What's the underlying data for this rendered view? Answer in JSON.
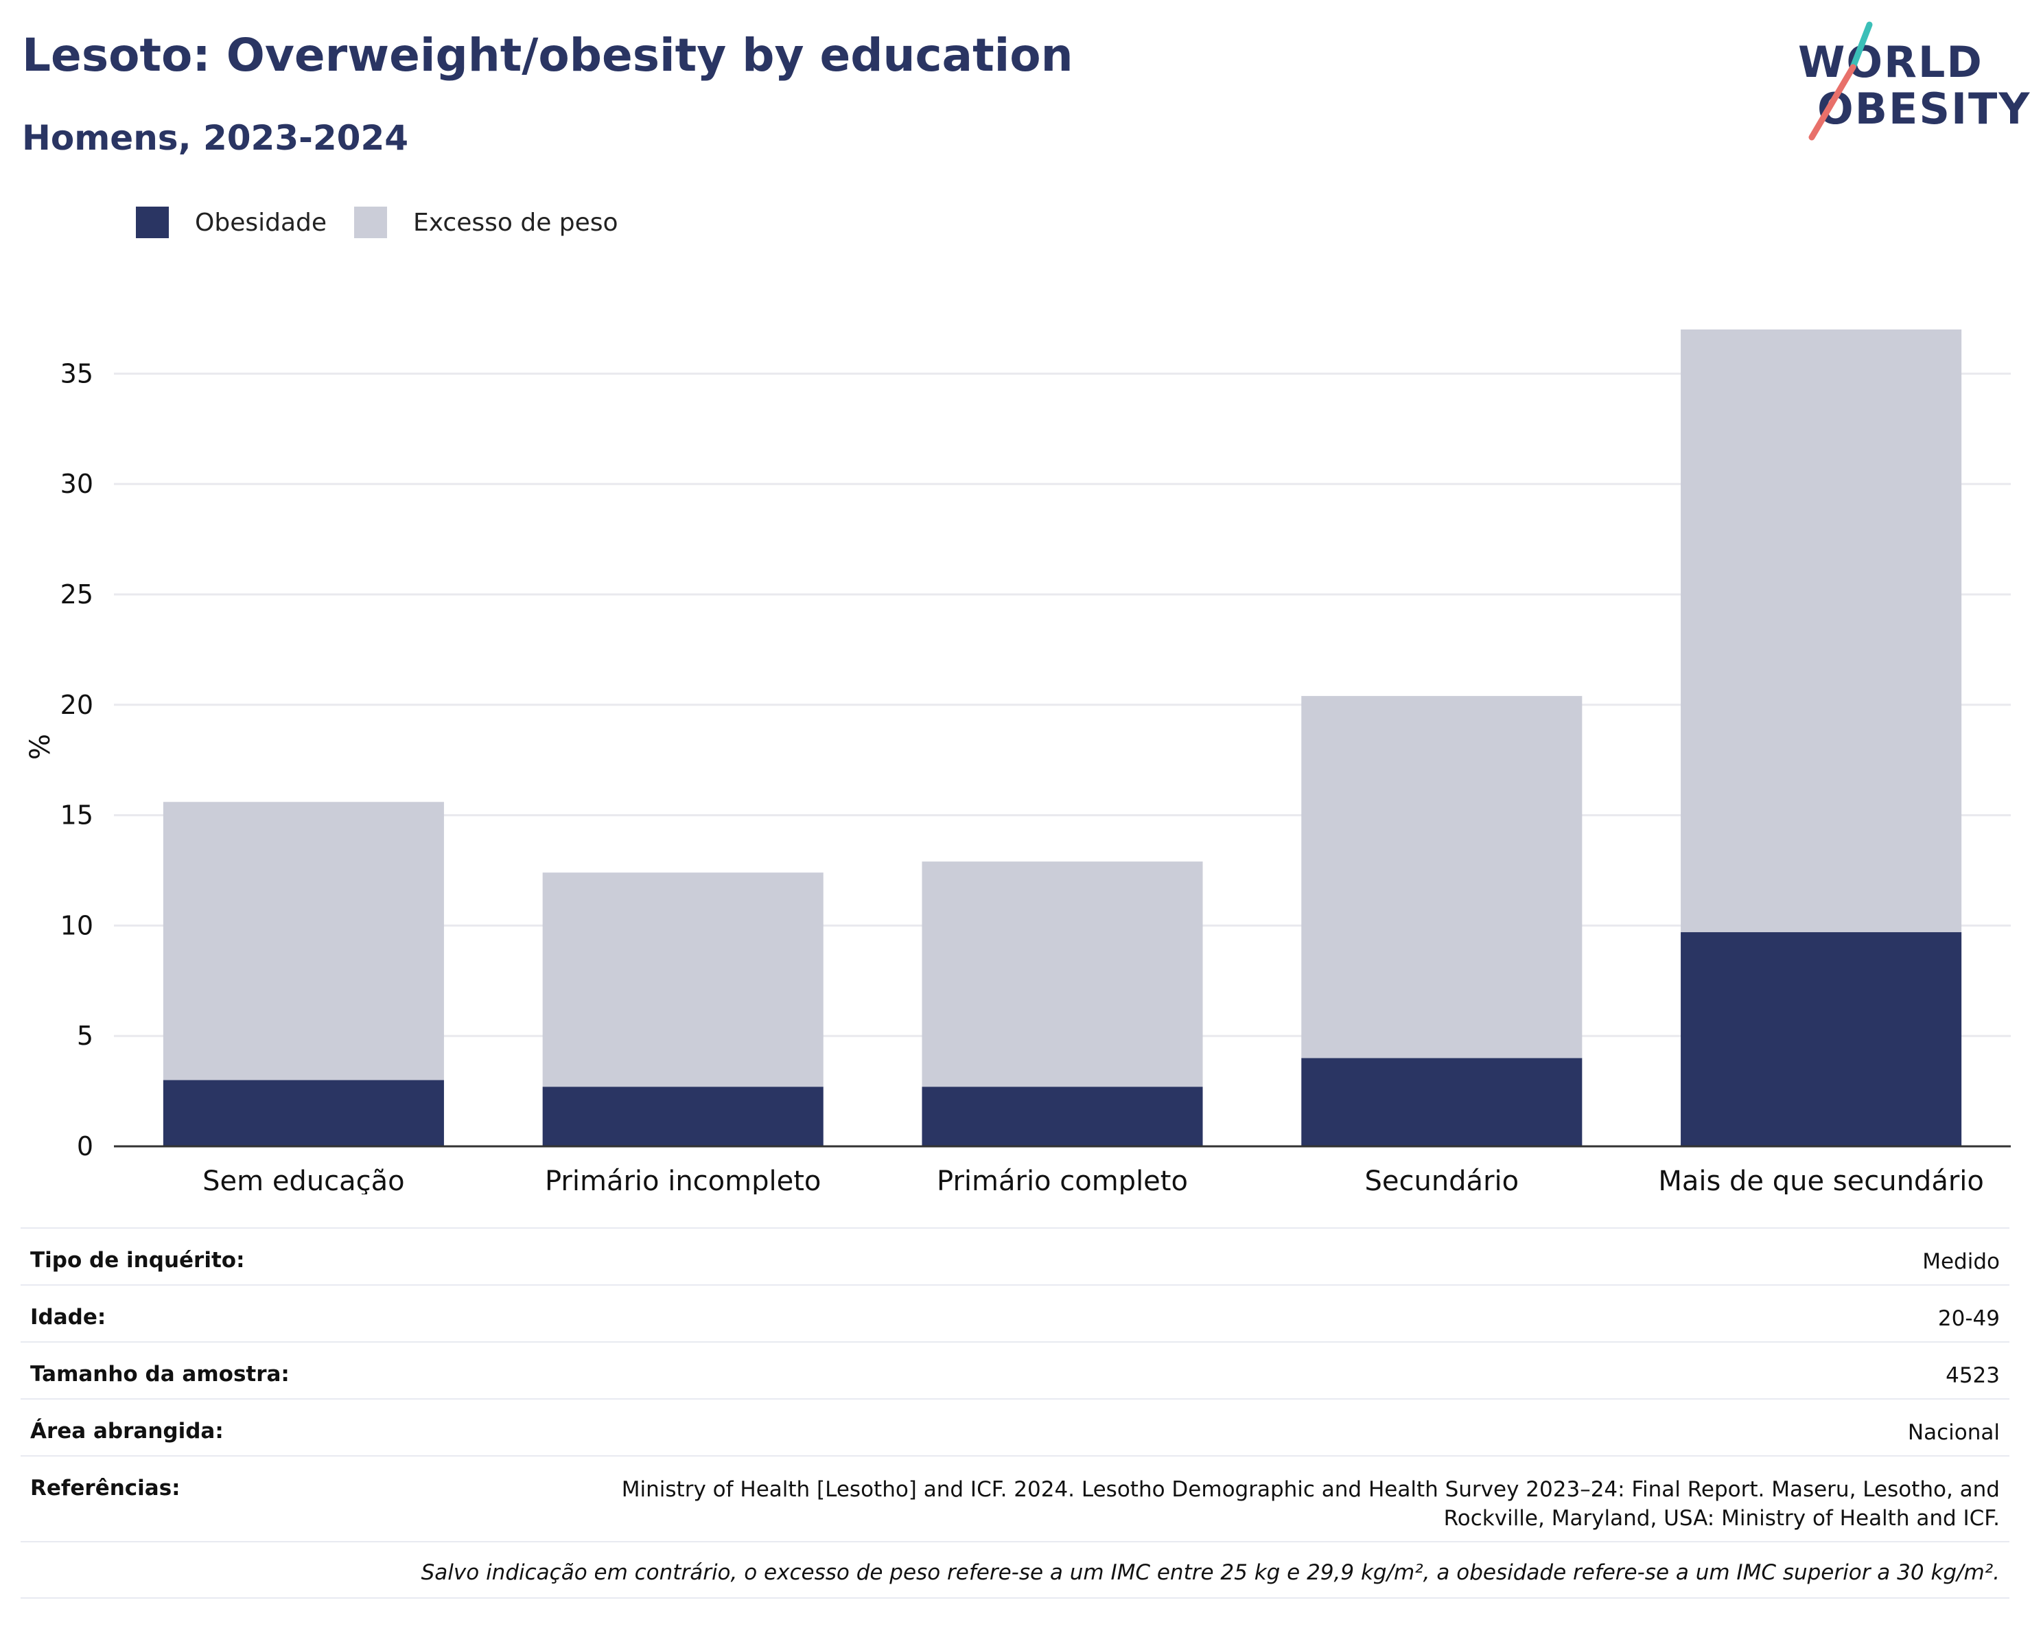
{
  "header": {
    "title": "Lesoto: Overweight/obesity by education",
    "subtitle": "Homens, 2023-2024"
  },
  "logo": {
    "line1": "WORLD",
    "line2": "OBESITY",
    "colors": {
      "teal": "#3bbfb8",
      "coral": "#e8706a",
      "navy": "#2a3563"
    }
  },
  "legend": [
    {
      "label": "Obesidade",
      "color": "#2a3563"
    },
    {
      "label": "Excesso de peso",
      "color": "#cbcdd8"
    }
  ],
  "chart_data": {
    "type": "bar",
    "stacked": true,
    "categories": [
      "Sem educação",
      "Primário incompleto",
      "Primário completo",
      "Secundário",
      "Mais de que secundário"
    ],
    "series": [
      {
        "name": "Obesidade",
        "color": "#2a3563",
        "values": [
          3.0,
          2.7,
          2.7,
          4.0,
          9.7
        ]
      },
      {
        "name": "Excesso de peso",
        "color": "#cbcdd8",
        "values": [
          12.6,
          9.7,
          10.2,
          16.4,
          27.3
        ]
      }
    ],
    "ylabel": "%",
    "ylim": [
      0,
      37
    ],
    "yticks": [
      0,
      5,
      10,
      15,
      20,
      25,
      30,
      35
    ],
    "grid": true,
    "legend_position": "top-left"
  },
  "info": {
    "rows": [
      {
        "key": "Tipo de inquérito:",
        "value": "Medido"
      },
      {
        "key": "Idade:",
        "value": "20-49"
      },
      {
        "key": "Tamanho da amostra:",
        "value": "4523"
      },
      {
        "key": "Área abrangida:",
        "value": "Nacional"
      }
    ],
    "references_key": "Referências:",
    "references_line1": "Ministry of Health [Lesotho] and ICF. 2024. Lesotho Demographic and Health Survey 2023–24: Final Report. Maseru, Lesotho, and",
    "references_line2": "Rockville, Maryland, USA: Ministry of Health and ICF.",
    "note": "Salvo indicação em contrário, o excesso de peso refere-se a um IMC entre 25 kg e 29,9 kg/m², a obesidade refere-se a um IMC superior a 30 kg/m²."
  }
}
